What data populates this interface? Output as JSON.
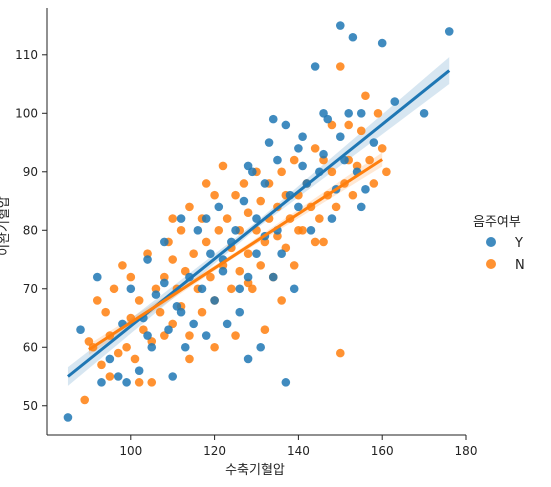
{
  "chart_data": {
    "type": "scatter",
    "title": "",
    "xlabel": "수축기혈압",
    "ylabel": "이완기혈압",
    "xlim": [
      80,
      180
    ],
    "ylim": [
      45,
      118
    ],
    "x_ticks": [
      100,
      120,
      140,
      160,
      180
    ],
    "y_ticks": [
      50,
      60,
      70,
      80,
      90,
      100,
      110
    ],
    "grid": false,
    "legend": {
      "title": "음주여부",
      "placement": "right",
      "entries": [
        {
          "label": "Y",
          "color": "#1f77b4"
        },
        {
          "label": "N",
          "color": "#ff7f0e"
        }
      ]
    },
    "series": [
      {
        "name": "Y",
        "color": "#1f77b4",
        "regression": {
          "x": [
            85,
            176
          ],
          "y": [
            55,
            107.3
          ],
          "ci_halfwidth": [
            1.6,
            0.6,
            2.3
          ]
        },
        "points": [
          [
            85,
            48
          ],
          [
            88,
            63
          ],
          [
            92,
            72
          ],
          [
            93,
            54
          ],
          [
            95,
            58
          ],
          [
            97,
            55
          ],
          [
            98,
            64
          ],
          [
            99,
            54
          ],
          [
            100,
            70
          ],
          [
            102,
            56
          ],
          [
            103,
            65
          ],
          [
            104,
            75
          ],
          [
            105,
            60
          ],
          [
            106,
            69
          ],
          [
            108,
            78
          ],
          [
            109,
            63
          ],
          [
            110,
            55
          ],
          [
            111,
            67
          ],
          [
            112,
            82
          ],
          [
            113,
            60
          ],
          [
            114,
            72
          ],
          [
            115,
            64
          ],
          [
            116,
            80
          ],
          [
            117,
            70
          ],
          [
            118,
            62
          ],
          [
            119,
            76
          ],
          [
            120,
            68
          ],
          [
            121,
            84
          ],
          [
            122,
            73
          ],
          [
            123,
            64
          ],
          [
            124,
            78
          ],
          [
            125,
            80
          ],
          [
            126,
            70
          ],
          [
            127,
            85
          ],
          [
            128,
            58
          ],
          [
            128,
            72
          ],
          [
            129,
            90
          ],
          [
            130,
            82
          ],
          [
            130,
            76
          ],
          [
            131,
            60
          ],
          [
            132,
            88
          ],
          [
            133,
            95
          ],
          [
            134,
            72
          ],
          [
            135,
            80
          ],
          [
            135,
            92
          ],
          [
            136,
            76
          ],
          [
            137,
            98
          ],
          [
            138,
            86
          ],
          [
            139,
            70
          ],
          [
            140,
            84
          ],
          [
            140,
            94
          ],
          [
            141,
            91
          ],
          [
            142,
            88
          ],
          [
            143,
            80
          ],
          [
            144,
            108
          ],
          [
            145,
            90
          ],
          [
            146,
            93
          ],
          [
            147,
            99
          ],
          [
            148,
            82
          ],
          [
            149,
            87
          ],
          [
            150,
            115
          ],
          [
            150,
            96
          ],
          [
            151,
            92
          ],
          [
            152,
            100
          ],
          [
            153,
            113
          ],
          [
            154,
            90
          ],
          [
            155,
            84
          ],
          [
            155,
            100
          ],
          [
            156,
            87
          ],
          [
            158,
            95
          ],
          [
            160,
            112
          ],
          [
            163,
            102
          ],
          [
            170,
            100
          ],
          [
            176,
            114
          ],
          [
            137,
            54
          ],
          [
            141,
            96
          ],
          [
            134,
            99
          ],
          [
            128,
            91
          ],
          [
            122,
            75
          ],
          [
            118,
            82
          ],
          [
            112,
            66
          ],
          [
            108,
            71
          ],
          [
            104,
            62
          ],
          [
            146,
            100
          ],
          [
            132,
            79
          ],
          [
            126,
            66
          ]
        ]
      },
      {
        "name": "N",
        "color": "#ff7f0e",
        "regression": {
          "x": [
            90,
            160
          ],
          "y": [
            59.6,
            92.1
          ],
          "ci_halfwidth": [
            0.9,
            0.4,
            1.2
          ]
        },
        "points": [
          [
            89,
            51
          ],
          [
            90,
            61
          ],
          [
            91,
            60
          ],
          [
            92,
            68
          ],
          [
            93,
            57
          ],
          [
            94,
            66
          ],
          [
            95,
            62
          ],
          [
            96,
            70
          ],
          [
            97,
            59
          ],
          [
            98,
            74
          ],
          [
            99,
            60
          ],
          [
            100,
            65
          ],
          [
            100,
            72
          ],
          [
            101,
            58
          ],
          [
            102,
            68
          ],
          [
            103,
            63
          ],
          [
            104,
            76
          ],
          [
            105,
            61
          ],
          [
            106,
            70
          ],
          [
            107,
            66
          ],
          [
            108,
            72
          ],
          [
            108,
            62
          ],
          [
            109,
            78
          ],
          [
            110,
            64
          ],
          [
            110,
            75
          ],
          [
            111,
            70
          ],
          [
            112,
            80
          ],
          [
            112,
            67
          ],
          [
            113,
            73
          ],
          [
            114,
            62
          ],
          [
            114,
            84
          ],
          [
            115,
            76
          ],
          [
            116,
            70
          ],
          [
            117,
            82
          ],
          [
            117,
            66
          ],
          [
            118,
            78
          ],
          [
            119,
            72
          ],
          [
            120,
            86
          ],
          [
            120,
            68
          ],
          [
            121,
            80
          ],
          [
            122,
            74
          ],
          [
            122,
            91
          ],
          [
            123,
            82
          ],
          [
            124,
            70
          ],
          [
            124,
            77
          ],
          [
            125,
            86
          ],
          [
            126,
            73
          ],
          [
            126,
            80
          ],
          [
            127,
            88
          ],
          [
            128,
            76
          ],
          [
            128,
            83
          ],
          [
            129,
            70
          ],
          [
            130,
            80
          ],
          [
            130,
            90
          ],
          [
            131,
            74
          ],
          [
            131,
            85
          ],
          [
            132,
            78
          ],
          [
            133,
            88
          ],
          [
            133,
            82
          ],
          [
            134,
            72
          ],
          [
            135,
            84
          ],
          [
            135,
            79
          ],
          [
            136,
            90
          ],
          [
            137,
            77
          ],
          [
            137,
            86
          ],
          [
            138,
            82
          ],
          [
            139,
            92
          ],
          [
            139,
            74
          ],
          [
            140,
            86
          ],
          [
            141,
            80
          ],
          [
            142,
            88
          ],
          [
            143,
            84
          ],
          [
            144,
            94
          ],
          [
            145,
            82
          ],
          [
            146,
            92
          ],
          [
            147,
            86
          ],
          [
            148,
            90
          ],
          [
            148,
            98
          ],
          [
            149,
            84
          ],
          [
            150,
            108
          ],
          [
            150,
            59
          ],
          [
            151,
            88
          ],
          [
            152,
            92
          ],
          [
            153,
            86
          ],
          [
            154,
            91
          ],
          [
            155,
            97
          ],
          [
            156,
            103
          ],
          [
            157,
            92
          ],
          [
            158,
            88
          ],
          [
            159,
            100
          ],
          [
            160,
            94
          ],
          [
            161,
            90
          ],
          [
            105,
            54
          ],
          [
            102,
            54
          ],
          [
            114,
            58
          ],
          [
            120,
            60
          ],
          [
            125,
            62
          ],
          [
            132,
            63
          ],
          [
            146,
            78
          ],
          [
            152,
            98
          ],
          [
            95,
            55
          ],
          [
            118,
            88
          ],
          [
            128,
            71
          ],
          [
            136,
            68
          ],
          [
            110,
            82
          ],
          [
            140,
            80
          ],
          [
            144,
            78
          ]
        ]
      }
    ]
  }
}
